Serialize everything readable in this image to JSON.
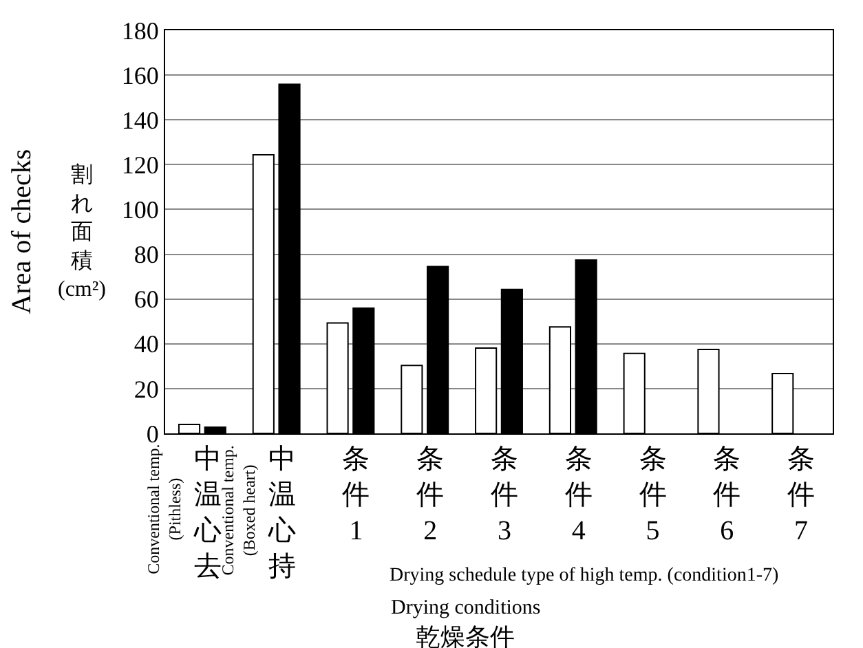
{
  "chart_data": {
    "type": "bar",
    "categories": [
      "中温心去",
      "中温心持",
      "条件1",
      "条件2",
      "条件3",
      "条件4",
      "条件5",
      "条件6",
      "条件7"
    ],
    "series": [
      {
        "color": "#ffffff",
        "values": [
          4.0,
          124.4,
          49.3,
          30.3,
          38.1,
          47.5,
          35.7,
          37.5,
          26.7
        ]
      },
      {
        "color": "#000000",
        "values": [
          2.8,
          155.9,
          55.9,
          74.5,
          64.3,
          77.4,
          null,
          null,
          null
        ]
      }
    ],
    "ylabel": "Area of checks",
    "xlabel": "Drying conditions",
    "annotations": [
      "Conventional temp.(Pithless)",
      "Conventional temp.(Boxed heart)",
      "Drying schedule type of high temp. (condition1-7)",
      "乾燥条件",
      "割れ面積(cm²)"
    ],
    "ylim": [
      0,
      180
    ],
    "yticks": [
      0,
      20,
      40,
      60,
      80,
      100,
      120,
      140,
      160,
      180
    ],
    "grid": "y"
  }
}
